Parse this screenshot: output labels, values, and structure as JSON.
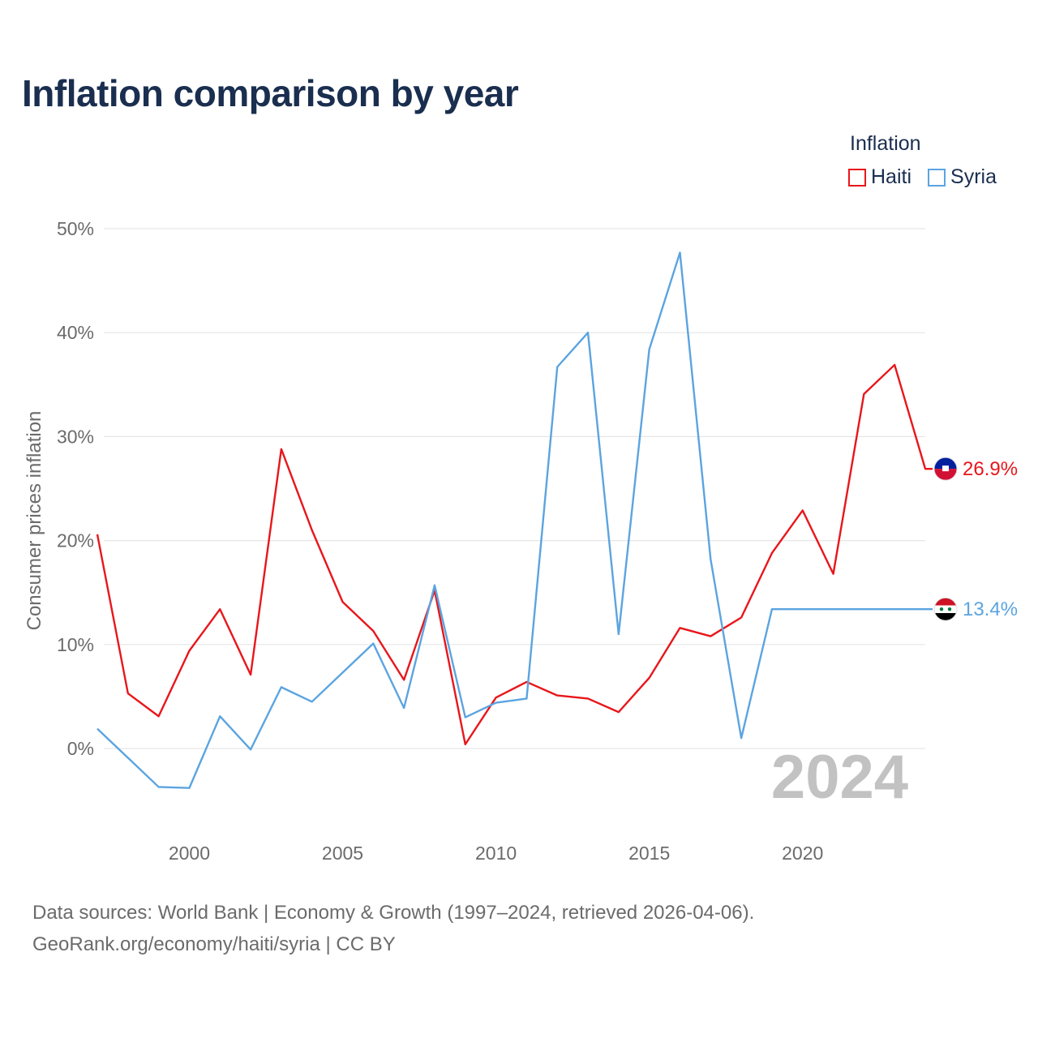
{
  "chart_data": {
    "type": "line",
    "title": "Inflation comparison by year",
    "legend_title": "Inflation",
    "legend_position": "top-right",
    "ylabel": "Consumer prices inflation",
    "xlabel": "",
    "x": [
      1997,
      1998,
      1999,
      2000,
      2001,
      2002,
      2003,
      2004,
      2005,
      2006,
      2007,
      2008,
      2009,
      2010,
      2011,
      2012,
      2013,
      2014,
      2015,
      2016,
      2017,
      2018,
      2019,
      2020,
      2021,
      2022,
      2023,
      2024
    ],
    "xlim": [
      1997,
      2024
    ],
    "ylim": [
      -7.5,
      50
    ],
    "x_ticks": [
      2000,
      2005,
      2010,
      2015,
      2020
    ],
    "x_tick_labels": [
      "2000",
      "2005",
      "2010",
      "2015",
      "2020"
    ],
    "y_ticks": [
      0,
      10,
      20,
      30,
      40,
      50
    ],
    "y_tick_labels": [
      "0%",
      "10%",
      "20%",
      "30%",
      "40%",
      "50%"
    ],
    "grid": true,
    "series": [
      {
        "name": "Haiti",
        "color": "#e8161b",
        "values": [
          20.6,
          5.3,
          3.1,
          9.4,
          13.4,
          7.1,
          28.8,
          21.0,
          14.1,
          11.3,
          6.6,
          15.2,
          0.4,
          4.9,
          6.4,
          5.1,
          4.8,
          3.5,
          6.8,
          11.6,
          10.8,
          12.6,
          18.8,
          22.9,
          16.8,
          34.1,
          36.9,
          26.9
        ],
        "end_label": "26.9%"
      },
      {
        "name": "Syria",
        "color": "#5ba4e0",
        "values": [
          1.9,
          -0.9,
          -3.7,
          -3.8,
          3.1,
          -0.1,
          5.9,
          4.5,
          7.3,
          10.1,
          3.9,
          15.7,
          3.0,
          4.4,
          4.8,
          36.7,
          40.0,
          11.0,
          38.4,
          47.7,
          18.2,
          1.0,
          13.4,
          13.4,
          13.4,
          13.4,
          13.4,
          13.4
        ],
        "end_label": "13.4%"
      }
    ],
    "annotation_year": "2024"
  },
  "colors": {
    "title": "#1a2e4f",
    "grid": "#e6e6e6",
    "tick": "#6b6b6b",
    "watermark": "#c2c2c2",
    "haiti_flag_blue": "#00209f",
    "haiti_flag_red": "#d21034",
    "syria_flag_red": "#ce1126",
    "syria_flag_black": "#000000",
    "syria_star_green": "#007a3d"
  },
  "footer": {
    "line1": "Data sources: World Bank | Economy & Growth (1997–2024, retrieved 2026-04-06).",
    "line2": "GeoRank.org/economy/haiti/syria | CC BY"
  },
  "icons": {
    "haiti_marker": "haiti-flag-icon",
    "syria_marker": "syria-flag-icon"
  }
}
